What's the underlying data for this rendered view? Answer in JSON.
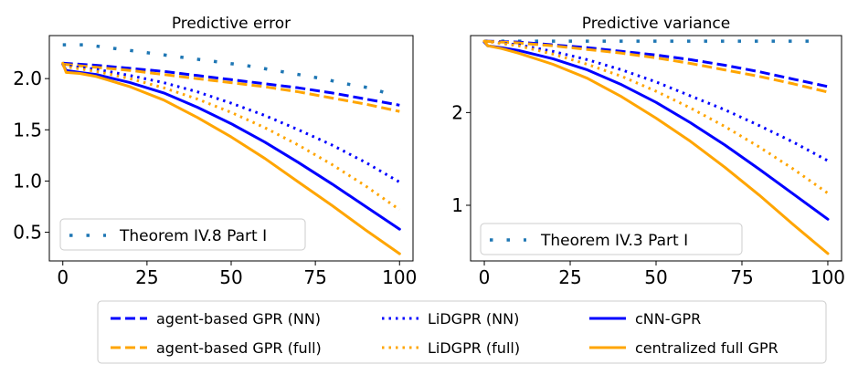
{
  "chart_data": [
    {
      "type": "line",
      "title": "Predictive error",
      "xlabel": "",
      "ylabel": "",
      "xlim": [
        -4,
        104
      ],
      "ylim": [
        0.22,
        2.42
      ],
      "xticks": [
        0,
        25,
        50,
        75,
        100
      ],
      "yticks": [
        0.5,
        1.0,
        1.5,
        2.0
      ],
      "xtick_labels": [
        "0",
        "25",
        "50",
        "75",
        "100"
      ],
      "ytick_labels": [
        "0.5",
        "1.0",
        "1.5",
        "2.0"
      ],
      "legend": {
        "location": "lower-left",
        "entries": [
          "Theorem IV.8 Part I"
        ]
      },
      "series": [
        {
          "name": "Theorem IV.8 Part I",
          "style": "dotted-sparse",
          "color": "#1f77b4",
          "x": [
            0,
            7,
            14,
            21,
            28,
            35,
            42,
            49,
            56,
            63,
            70,
            77,
            84,
            91,
            98
          ],
          "y": [
            2.33,
            2.33,
            2.3,
            2.27,
            2.24,
            2.21,
            2.18,
            2.15,
            2.12,
            2.08,
            2.04,
            2.0,
            1.95,
            1.91,
            1.84
          ]
        },
        {
          "name": "agent-based GPR (NN)",
          "style": "dashed",
          "color": "#0000ff",
          "x": [
            0,
            10,
            20,
            30,
            40,
            50,
            60,
            70,
            80,
            90,
            100
          ],
          "y": [
            2.15,
            2.13,
            2.1,
            2.07,
            2.03,
            1.99,
            1.95,
            1.91,
            1.86,
            1.8,
            1.74
          ]
        },
        {
          "name": "agent-based GPR (full)",
          "style": "dashed",
          "color": "#ffa500",
          "x": [
            0,
            10,
            20,
            30,
            40,
            50,
            60,
            70,
            80,
            90,
            100
          ],
          "y": [
            2.14,
            2.11,
            2.08,
            2.04,
            2.0,
            1.96,
            1.92,
            1.87,
            1.81,
            1.75,
            1.68
          ]
        },
        {
          "name": "LiDGPR (NN)",
          "style": "dotted",
          "color": "#0000ff",
          "x": [
            0,
            10,
            20,
            30,
            40,
            50,
            60,
            70,
            80,
            90,
            100
          ],
          "y": [
            2.13,
            2.09,
            2.03,
            1.96,
            1.87,
            1.76,
            1.64,
            1.5,
            1.35,
            1.18,
            0.99
          ]
        },
        {
          "name": "LiDGPR (full)",
          "style": "dotted",
          "color": "#ffa500",
          "x": [
            0,
            10,
            20,
            30,
            40,
            50,
            60,
            70,
            80,
            90,
            100
          ],
          "y": [
            2.12,
            2.07,
            2.0,
            1.91,
            1.8,
            1.67,
            1.52,
            1.35,
            1.16,
            0.95,
            0.72
          ]
        },
        {
          "name": "cNN-GPR",
          "style": "solid",
          "color": "#0000ff",
          "x": [
            0,
            1,
            5,
            10,
            20,
            30,
            40,
            50,
            60,
            70,
            80,
            90,
            100
          ],
          "y": [
            2.14,
            2.08,
            2.06,
            2.04,
            1.96,
            1.86,
            1.72,
            1.56,
            1.38,
            1.18,
            0.97,
            0.75,
            0.53
          ]
        },
        {
          "name": "centralized full GPR",
          "style": "solid",
          "color": "#ffa500",
          "x": [
            0,
            1,
            5,
            10,
            20,
            30,
            40,
            50,
            60,
            70,
            80,
            90,
            100
          ],
          "y": [
            2.15,
            2.06,
            2.05,
            2.02,
            1.92,
            1.79,
            1.62,
            1.43,
            1.22,
            0.99,
            0.76,
            0.52,
            0.29
          ]
        }
      ]
    },
    {
      "type": "line",
      "title": "Predictive variance",
      "xlabel": "",
      "ylabel": "",
      "xlim": [
        -4,
        104
      ],
      "ylim": [
        0.4,
        2.83
      ],
      "xticks": [
        0,
        25,
        50,
        75,
        100
      ],
      "yticks": [
        1,
        2
      ],
      "xtick_labels": [
        "0",
        "25",
        "50",
        "75",
        "100"
      ],
      "ytick_labels": [
        "1",
        "2"
      ],
      "legend": {
        "location": "lower-left",
        "entries": [
          "Theorem IV.3 Part I"
        ]
      },
      "series": [
        {
          "name": "Theorem IV.3 Part I",
          "style": "dotted-sparse",
          "color": "#1f77b4",
          "x": [
            0,
            7,
            14,
            21,
            28,
            35,
            42,
            49,
            56,
            63,
            70,
            77,
            84,
            91,
            98
          ],
          "y": [
            2.77,
            2.77,
            2.77,
            2.77,
            2.77,
            2.77,
            2.77,
            2.77,
            2.77,
            2.77,
            2.77,
            2.77,
            2.77,
            2.77,
            2.77
          ]
        },
        {
          "name": "agent-based GPR (NN)",
          "style": "dashed",
          "color": "#0000ff",
          "x": [
            0,
            10,
            20,
            30,
            40,
            50,
            60,
            70,
            80,
            90,
            100
          ],
          "y": [
            2.77,
            2.76,
            2.73,
            2.7,
            2.66,
            2.62,
            2.57,
            2.51,
            2.44,
            2.36,
            2.28
          ]
        },
        {
          "name": "agent-based GPR (full)",
          "style": "dashed",
          "color": "#ffa500",
          "x": [
            0,
            10,
            20,
            30,
            40,
            50,
            60,
            70,
            80,
            90,
            100
          ],
          "y": [
            2.77,
            2.75,
            2.72,
            2.68,
            2.64,
            2.59,
            2.53,
            2.46,
            2.39,
            2.31,
            2.22
          ]
        },
        {
          "name": "LiDGPR (NN)",
          "style": "dotted",
          "color": "#0000ff",
          "x": [
            0,
            10,
            20,
            30,
            40,
            50,
            60,
            70,
            80,
            90,
            100
          ],
          "y": [
            2.77,
            2.73,
            2.66,
            2.57,
            2.46,
            2.33,
            2.18,
            2.03,
            1.86,
            1.68,
            1.48
          ]
        },
        {
          "name": "LiDGPR (full)",
          "style": "dotted",
          "color": "#ffa500",
          "x": [
            0,
            10,
            20,
            30,
            40,
            50,
            60,
            70,
            80,
            90,
            100
          ],
          "y": [
            2.77,
            2.72,
            2.63,
            2.52,
            2.39,
            2.23,
            2.05,
            1.85,
            1.63,
            1.39,
            1.13
          ]
        },
        {
          "name": "cNN-GPR",
          "style": "solid",
          "color": "#0000ff",
          "x": [
            0,
            1,
            5,
            10,
            20,
            30,
            40,
            50,
            60,
            70,
            80,
            90,
            100
          ],
          "y": [
            2.76,
            2.72,
            2.7,
            2.67,
            2.58,
            2.46,
            2.3,
            2.11,
            1.89,
            1.65,
            1.39,
            1.12,
            0.85
          ]
        },
        {
          "name": "centralized full GPR",
          "style": "solid",
          "color": "#ffa500",
          "x": [
            0,
            1,
            5,
            10,
            20,
            30,
            40,
            50,
            60,
            70,
            80,
            90,
            100
          ],
          "y": [
            2.77,
            2.72,
            2.69,
            2.64,
            2.52,
            2.37,
            2.17,
            1.94,
            1.69,
            1.41,
            1.11,
            0.79,
            0.48
          ]
        }
      ]
    }
  ],
  "shared_legend": {
    "columns": 3,
    "entries": [
      {
        "label": "agent-based GPR (NN)",
        "color": "#0000ff",
        "style": "dashed"
      },
      {
        "label": "agent-based GPR (full)",
        "color": "#ffa500",
        "style": "dashed"
      },
      {
        "label": "LiDGPR (NN)",
        "color": "#0000ff",
        "style": "dotted"
      },
      {
        "label": "LiDGPR (full)",
        "color": "#ffa500",
        "style": "dotted"
      },
      {
        "label": "cNN-GPR",
        "color": "#0000ff",
        "style": "solid"
      },
      {
        "label": "centralized full GPR",
        "color": "#ffa500",
        "style": "solid"
      }
    ]
  }
}
